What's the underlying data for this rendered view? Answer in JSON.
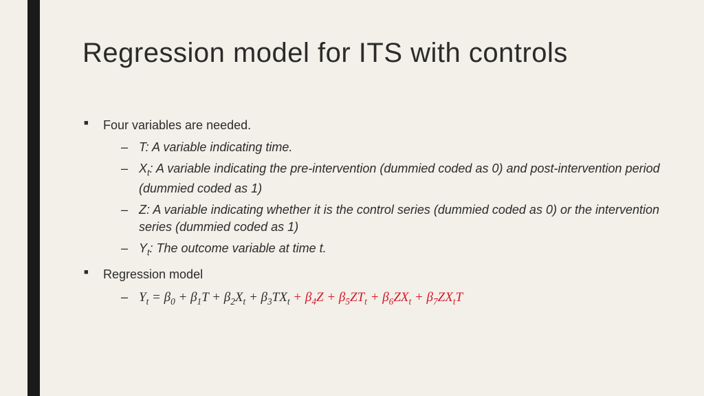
{
  "colors": {
    "background": "#f2f0e8",
    "accent_bar": "#1a1a1a",
    "text": "#2b2b2b",
    "equation_highlight": "#d4152a"
  },
  "title": "Regression model for ITS with controls",
  "bullets": {
    "intro": "Four variables are needed.",
    "vars": {
      "t_label": "T",
      "t_desc": ": A variable indicating time.",
      "x_label": "X",
      "x_sub": "t",
      "x_desc": ": A variable indicating the pre-intervention (dummied coded as 0) and post-intervention period (dummied coded as 1)",
      "z_label": "Z",
      "z_desc": ": A variable indicating whether it is the control series (dummied coded as 0) or the intervention series (dummied coded as 1)",
      "y_label": "Y",
      "y_sub": "t",
      "y_desc": ": The outcome variable at time t."
    },
    "model_label": "Regression model"
  },
  "equation": {
    "lhs_y": "Y",
    "lhs_sub": "t",
    "eq": " = ",
    "b": "β",
    "s0": "0",
    "s1": "1",
    "s2": "2",
    "s3": "3",
    "s4": "4",
    "s5": "5",
    "s6": "6",
    "s7": "7",
    "T": "T",
    "X": "X",
    "Z": "Z",
    "t": "t",
    "plus": " + "
  }
}
